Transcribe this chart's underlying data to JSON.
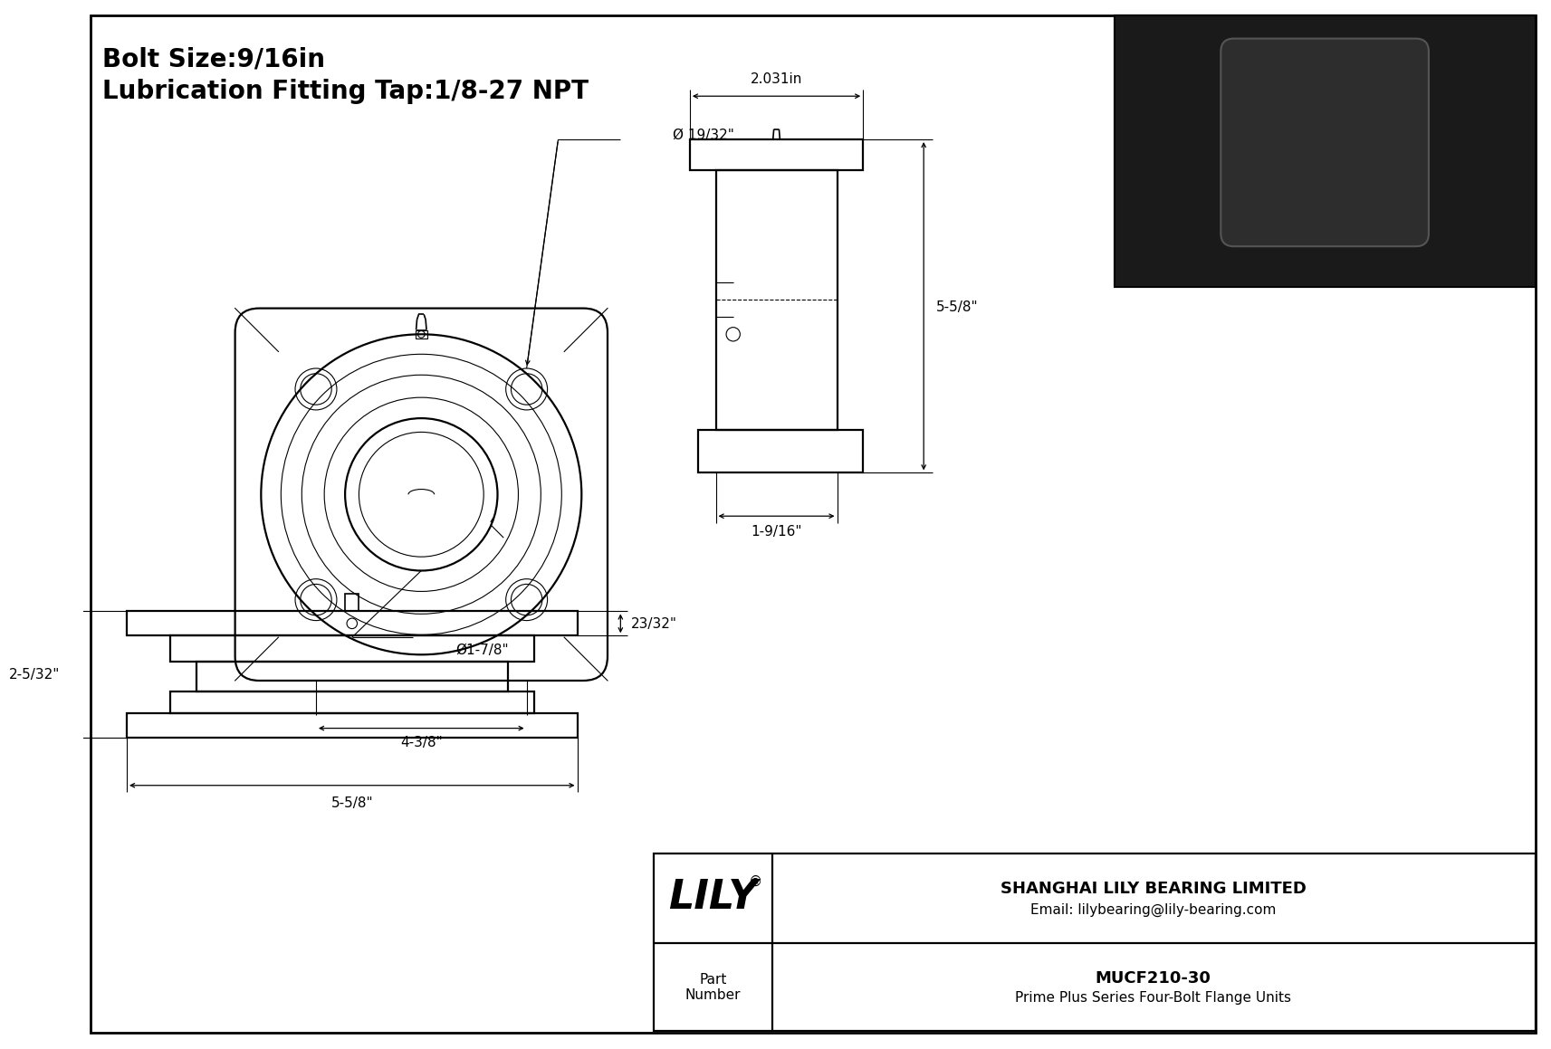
{
  "title_line1": "Bolt Size:9/16in",
  "title_line2": "Lubrication Fitting Tap:1/8-27 NPT",
  "bg_color": "#ffffff",
  "line_color": "#000000",
  "company_name": "SHANGHAI LILY BEARING LIMITED",
  "company_email": "Email: lilybearing@lily-bearing.com",
  "part_label": "Part\nNumber",
  "part_number": "MUCF210-30",
  "part_desc": "Prime Plus Series Four-Bolt Flange Units",
  "dim_bolt_hole": "Ø 19/32\"",
  "dim_bore": "Ø1-7/8\"",
  "dim_bolt_circle": "4-3/8\"",
  "dim_flange_width": "2.031in",
  "dim_height": "5-5/8\"",
  "dim_base_width": "1-9/16\"",
  "dim_depth": "23/32\"",
  "dim_total_depth": "2-5/32\"",
  "dim_bottom_width": "5-5/8\""
}
